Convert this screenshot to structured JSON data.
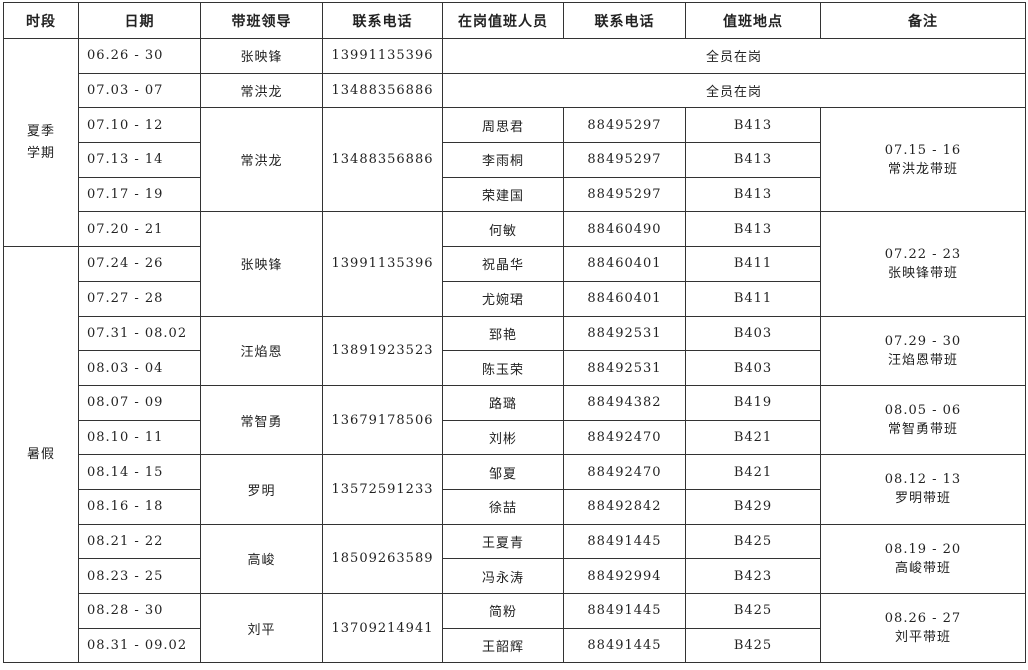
{
  "headers": [
    "时段",
    "日期",
    "带班领导",
    "联系电话",
    "在岗值班人员",
    "联系电话",
    "值班地点",
    "备注"
  ],
  "periods": [
    {
      "label": "夏季\n学期",
      "rows": 6
    },
    {
      "label": "暑假",
      "rows": 12
    }
  ],
  "groups": [
    {
      "leader": "张映锋",
      "phone": "13991135396",
      "all_label": "全员在岗",
      "rows": [
        {
          "date": "06.26 - 30"
        }
      ]
    },
    {
      "leader": "常洪龙",
      "phone": "13488356886",
      "all_label": "全员在岗",
      "rows": [
        {
          "date": "07.03 - 07"
        }
      ]
    },
    {
      "leader": "常洪龙",
      "phone": "13488356886",
      "note": "07.15 - 16\n常洪龙带班",
      "rows": [
        {
          "date": "07.10 - 12",
          "staff": "周思君",
          "tel": "88495297",
          "room": "B413"
        },
        {
          "date": "07.13 - 14",
          "staff": "李雨桐",
          "tel": "88495297",
          "room": "B413"
        },
        {
          "date": "07.17 - 19",
          "staff": "荣建国",
          "tel": "88495297",
          "room": "B413"
        }
      ]
    },
    {
      "leader": "张映锋",
      "phone": "13991135396",
      "note": "07.22 - 23\n张映锋带班",
      "rows": [
        {
          "date": "07.20 - 21",
          "staff": "何敏",
          "tel": "88460490",
          "room": "B413"
        },
        {
          "date": "07.24 - 26",
          "staff": "祝晶华",
          "tel": "88460401",
          "room": "B411"
        },
        {
          "date": "07.27 - 28",
          "staff": "尤婉珺",
          "tel": "88460401",
          "room": "B411"
        }
      ]
    },
    {
      "leader": "汪焰恩",
      "phone": "13891923523",
      "note": "07.29 - 30\n汪焰恩带班",
      "rows": [
        {
          "date": "07.31 - 08.02",
          "staff": "郅艳",
          "tel": "88492531",
          "room": "B403"
        },
        {
          "date": "08.03 - 04",
          "staff": "陈玉荣",
          "tel": "88492531",
          "room": "B403"
        }
      ]
    },
    {
      "leader": "常智勇",
      "phone": "13679178506",
      "note": "08.05 - 06\n常智勇带班",
      "rows": [
        {
          "date": "08.07 - 09",
          "staff": "路璐",
          "tel": "88494382",
          "room": "B419"
        },
        {
          "date": "08.10 - 11",
          "staff": "刘彬",
          "tel": "88492470",
          "room": "B421"
        }
      ]
    },
    {
      "leader": "罗明",
      "phone": "13572591233",
      "note": "08.12 - 13\n罗明带班",
      "rows": [
        {
          "date": "08.14 - 15",
          "staff": "邹夏",
          "tel": "88492470",
          "room": "B421"
        },
        {
          "date": "08.16 - 18",
          "staff": "徐喆",
          "tel": "88492842",
          "room": "B429"
        }
      ]
    },
    {
      "leader": "高峻",
      "phone": "18509263589",
      "note": "08.19 - 20\n高峻带班",
      "rows": [
        {
          "date": "08.21 - 22",
          "staff": "王夏青",
          "tel": "88491445",
          "room": "B425"
        },
        {
          "date": "08.23 - 25",
          "staff": "冯永涛",
          "tel": "88492994",
          "room": "B423"
        }
      ]
    },
    {
      "leader": "刘平",
      "phone": "13709214941",
      "note": "08.26 - 27\n刘平带班",
      "rows": [
        {
          "date": "08.28 - 30",
          "staff": "简粉",
          "tel": "88491445",
          "room": "B425"
        },
        {
          "date": "08.31 - 09.02",
          "staff": "王韶辉",
          "tel": "88491445",
          "room": "B425"
        }
      ]
    }
  ]
}
